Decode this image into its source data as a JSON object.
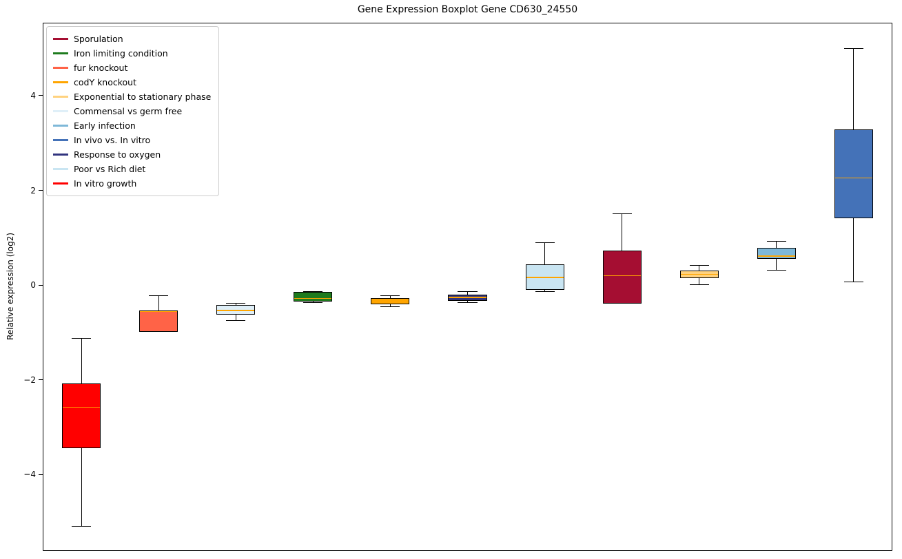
{
  "chart_data": {
    "type": "boxplot",
    "title": "Gene Expression Boxplot Gene CD630_24550",
    "ylabel": "Relative expression (log2)",
    "ylim": [
      -5.61,
      5.54
    ],
    "xlim": [
      0.5,
      11.5
    ],
    "box_width": 0.5,
    "grid": false,
    "legend_position": "upper-left",
    "median_color": "#FFA500",
    "yticks": [
      {
        "value": -4,
        "label": "−4"
      },
      {
        "value": -2,
        "label": "−2"
      },
      {
        "value": 0,
        "label": "0"
      },
      {
        "value": 2,
        "label": "2"
      },
      {
        "value": 4,
        "label": "4"
      }
    ],
    "legend": [
      {
        "label": "Sporulation",
        "color": "#A50E32"
      },
      {
        "label": "Iron limiting condition",
        "color": "#1E7B1E"
      },
      {
        "label": "fur knockout",
        "color": "#FF6347"
      },
      {
        "label": "codY knockout",
        "color": "#FFA500"
      },
      {
        "label": "Exponential to stationary phase",
        "color": "#FFD27F"
      },
      {
        "label": "Commensal vs germ free",
        "color": "#DFEFF8"
      },
      {
        "label": "Early infection",
        "color": "#7EB8D8"
      },
      {
        "label": "In vivo vs. In vitro",
        "color": "#4472B8"
      },
      {
        "label": "Response to oxygen",
        "color": "#31347E"
      },
      {
        "label": "Poor vs Rich diet",
        "color": "#C9E5F2"
      },
      {
        "label": "In vitro growth",
        "color": "#FF0000"
      }
    ],
    "series": [
      {
        "name": "In vitro growth",
        "color": "#FF0000",
        "position": 1,
        "whisker_low": -5.1,
        "q1": -3.44,
        "median": -2.58,
        "q3": -2.08,
        "whisker_high": -1.12
      },
      {
        "name": "fur knockout",
        "color": "#FF6347",
        "position": 2,
        "whisker_low": -0.98,
        "q1": -0.98,
        "median": -0.56,
        "q3": -0.53,
        "whisker_high": -0.22
      },
      {
        "name": "Commensal vs germ free",
        "color": "#DFEFF8",
        "position": 3,
        "whisker_low": -0.75,
        "q1": -0.62,
        "median": -0.54,
        "q3": -0.42,
        "whisker_high": -0.39
      },
      {
        "name": "Iron limiting condition",
        "color": "#1E7B1E",
        "position": 4,
        "whisker_low": -0.37,
        "q1": -0.35,
        "median": -0.28,
        "q3": -0.15,
        "whisker_high": -0.13
      },
      {
        "name": "codY knockout",
        "color": "#FFA500",
        "position": 5,
        "whisker_low": -0.45,
        "q1": -0.4,
        "median": -0.33,
        "q3": -0.27,
        "whisker_high": -0.22
      },
      {
        "name": "Response to oxygen",
        "color": "#31347E",
        "position": 6,
        "whisker_low": -0.37,
        "q1": -0.34,
        "median": -0.26,
        "q3": -0.2,
        "whisker_high": -0.13
      },
      {
        "name": "Poor vs Rich diet",
        "color": "#C9E5F2",
        "position": 7,
        "whisker_low": -0.14,
        "q1": -0.1,
        "median": 0.16,
        "q3": 0.44,
        "whisker_high": 0.89
      },
      {
        "name": "Sporulation",
        "color": "#A50E32",
        "position": 8,
        "whisker_low": -0.39,
        "q1": -0.39,
        "median": 0.2,
        "q3": 0.73,
        "whisker_high": 1.5
      },
      {
        "name": "Exponential to stationary phase",
        "color": "#FFD27F",
        "position": 9,
        "whisker_low": 0.01,
        "q1": 0.15,
        "median": 0.23,
        "q3": 0.31,
        "whisker_high": 0.41
      },
      {
        "name": "Early infection",
        "color": "#7EB8D8",
        "position": 10,
        "whisker_low": 0.32,
        "q1": 0.55,
        "median": 0.61,
        "q3": 0.78,
        "whisker_high": 0.93
      },
      {
        "name": "In vivo vs. In vitro",
        "color": "#4472B8",
        "position": 11,
        "whisker_low": 0.06,
        "q1": 1.41,
        "median": 2.26,
        "q3": 3.29,
        "whisker_high": 5.0
      }
    ]
  }
}
